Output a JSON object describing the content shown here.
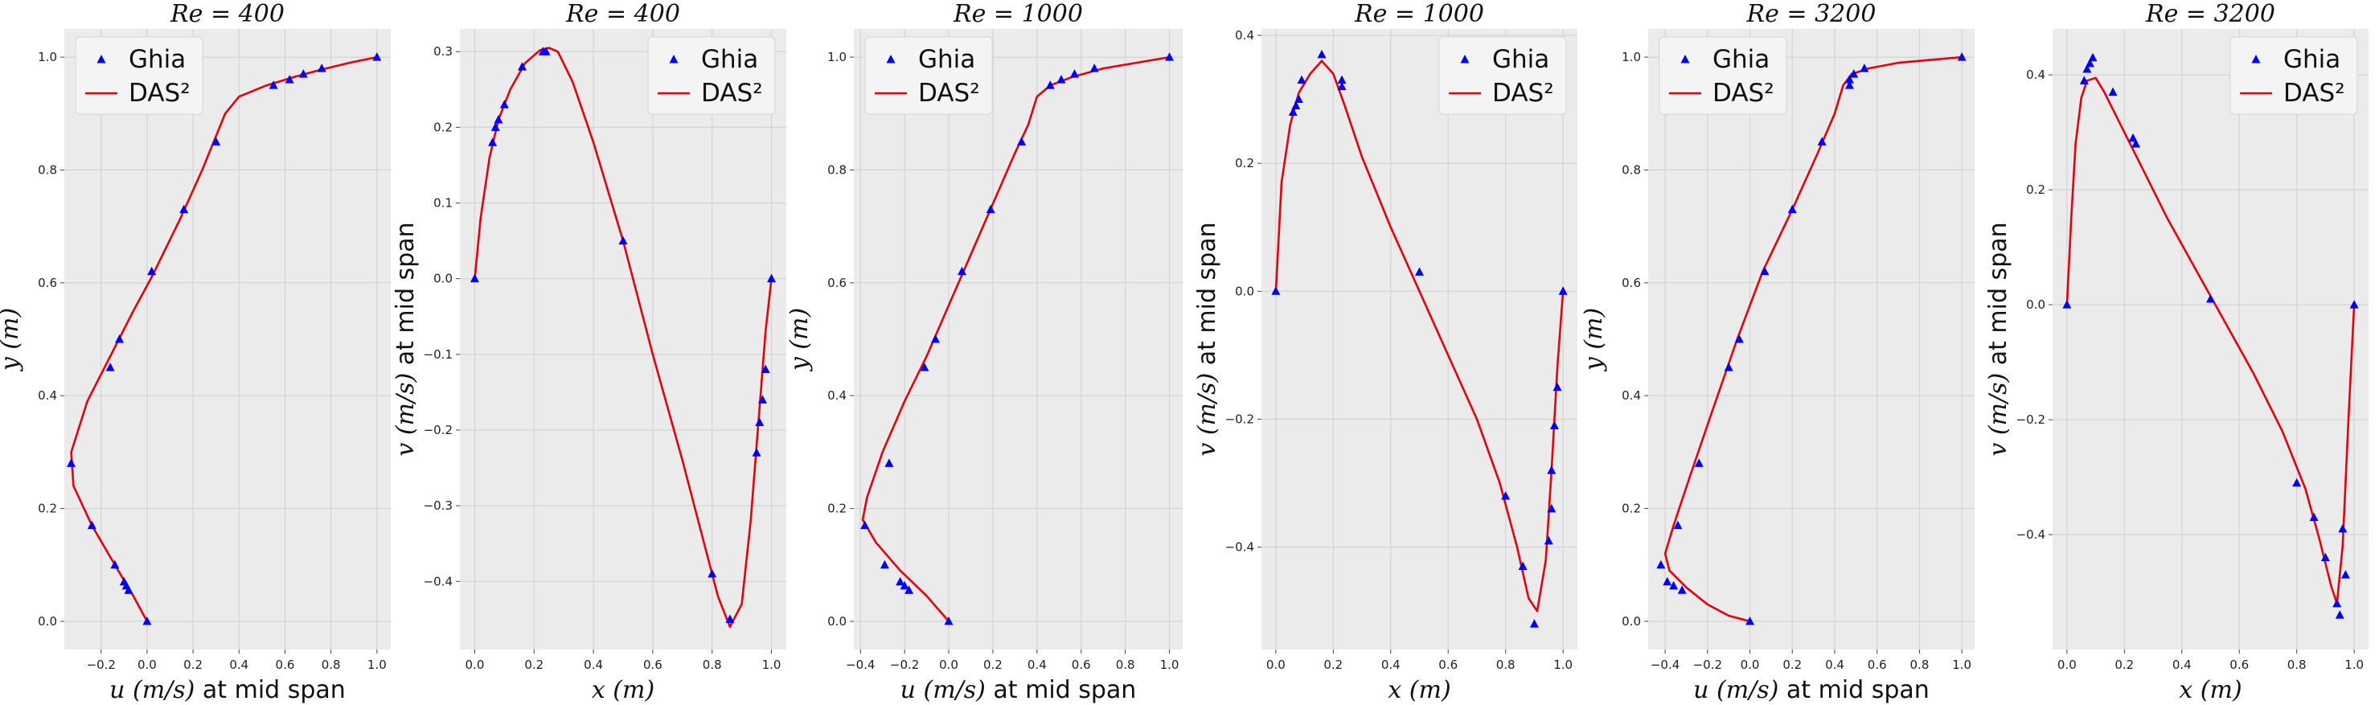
{
  "chart_data": [
    {
      "type": "line",
      "title": "Re = 400",
      "xlabel": "u (m/s) at mid span",
      "ylabel": "y (m)",
      "xlim": [
        -0.36,
        1.06
      ],
      "ylim": [
        -0.05,
        1.05
      ],
      "xticks": [
        -0.2,
        0.0,
        0.2,
        0.4,
        0.6,
        0.8,
        1.0
      ],
      "yticks": [
        0.0,
        0.2,
        0.4,
        0.6,
        0.8,
        1.0
      ],
      "grid": true,
      "legend_position": "top-left",
      "series": [
        {
          "name": "Ghia",
          "kind": "marker",
          "color": "#0000ff",
          "x": [
            0.0,
            -0.08,
            -0.09,
            -0.1,
            -0.14,
            -0.24,
            -0.33,
            -0.16,
            -0.12,
            0.02,
            0.16,
            0.3,
            0.55,
            0.62,
            0.68,
            0.76,
            1.0
          ],
          "y": [
            0.0,
            0.055,
            0.063,
            0.07,
            0.1,
            0.17,
            0.28,
            0.45,
            0.5,
            0.62,
            0.73,
            0.85,
            0.95,
            0.96,
            0.97,
            0.98,
            1.0
          ]
        },
        {
          "name": "DAS²",
          "kind": "line",
          "color": "#e8000b",
          "x": [
            0.0,
            -0.06,
            -0.14,
            -0.24,
            -0.32,
            -0.33,
            -0.26,
            -0.16,
            -0.06,
            0.02,
            0.14,
            0.24,
            0.3,
            0.34,
            0.4,
            0.52,
            0.64,
            0.76,
            0.88,
            1.0
          ],
          "y": [
            0.0,
            0.045,
            0.1,
            0.17,
            0.24,
            0.3,
            0.39,
            0.47,
            0.55,
            0.61,
            0.71,
            0.8,
            0.86,
            0.9,
            0.93,
            0.95,
            0.965,
            0.978,
            0.99,
            1.0
          ]
        }
      ]
    },
    {
      "type": "line",
      "title": "Re = 400",
      "xlabel": "x (m)",
      "ylabel": "v (m/s) at mid span",
      "xlim": [
        -0.05,
        1.05
      ],
      "ylim": [
        -0.49,
        0.33
      ],
      "xticks": [
        0.0,
        0.2,
        0.4,
        0.6,
        0.8,
        1.0
      ],
      "yticks": [
        -0.4,
        -0.3,
        -0.2,
        -0.1,
        0.0,
        0.1,
        0.2,
        0.3
      ],
      "grid": true,
      "legend_position": "top-right",
      "series": [
        {
          "name": "Ghia",
          "kind": "marker",
          "color": "#0000ff",
          "x": [
            0.0,
            0.06,
            0.07,
            0.08,
            0.1,
            0.16,
            0.23,
            0.24,
            0.5,
            0.8,
            0.86,
            0.95,
            0.96,
            0.97,
            0.98,
            1.0
          ],
          "y": [
            0.0,
            0.18,
            0.2,
            0.21,
            0.23,
            0.28,
            0.3,
            0.3,
            0.05,
            -0.39,
            -0.45,
            -0.23,
            -0.19,
            -0.16,
            -0.12,
            0.0
          ]
        },
        {
          "name": "DAS²",
          "kind": "line",
          "color": "#e8000b",
          "x": [
            0.0,
            0.02,
            0.05,
            0.08,
            0.12,
            0.17,
            0.22,
            0.25,
            0.28,
            0.33,
            0.4,
            0.5,
            0.6,
            0.7,
            0.78,
            0.82,
            0.86,
            0.9,
            0.93,
            0.96,
            0.98,
            1.0
          ],
          "y": [
            0.0,
            0.08,
            0.16,
            0.21,
            0.25,
            0.285,
            0.302,
            0.305,
            0.3,
            0.26,
            0.18,
            0.05,
            -0.1,
            -0.24,
            -0.36,
            -0.42,
            -0.46,
            -0.43,
            -0.32,
            -0.17,
            -0.07,
            0.0
          ]
        }
      ]
    },
    {
      "type": "line",
      "title": "Re = 1000",
      "xlabel": "u (m/s) at mid span",
      "ylabel": "y (m)",
      "xlim": [
        -0.43,
        1.06
      ],
      "ylim": [
        -0.05,
        1.05
      ],
      "xticks": [
        -0.4,
        -0.2,
        0.0,
        0.2,
        0.4,
        0.6,
        0.8,
        1.0
      ],
      "yticks": [
        0.0,
        0.2,
        0.4,
        0.6,
        0.8,
        1.0
      ],
      "grid": true,
      "legend_position": "top-left",
      "series": [
        {
          "name": "Ghia",
          "kind": "marker",
          "color": "#0000ff",
          "x": [
            0.0,
            -0.18,
            -0.2,
            -0.22,
            -0.29,
            -0.38,
            -0.27,
            -0.11,
            -0.06,
            0.06,
            0.19,
            0.33,
            0.46,
            0.51,
            0.57,
            0.66,
            1.0
          ],
          "y": [
            0.0,
            0.055,
            0.063,
            0.07,
            0.1,
            0.17,
            0.28,
            0.45,
            0.5,
            0.62,
            0.73,
            0.85,
            0.95,
            0.96,
            0.97,
            0.98,
            1.0
          ]
        },
        {
          "name": "DAS²",
          "kind": "line",
          "color": "#e8000b",
          "x": [
            0.0,
            -0.1,
            -0.22,
            -0.33,
            -0.39,
            -0.37,
            -0.3,
            -0.2,
            -0.1,
            0.0,
            0.1,
            0.2,
            0.3,
            0.36,
            0.4,
            0.46,
            0.56,
            0.7,
            0.85,
            1.0
          ],
          "y": [
            0.0,
            0.045,
            0.09,
            0.14,
            0.18,
            0.22,
            0.3,
            0.39,
            0.47,
            0.56,
            0.65,
            0.74,
            0.83,
            0.88,
            0.93,
            0.95,
            0.965,
            0.98,
            0.99,
            1.0
          ]
        }
      ]
    },
    {
      "type": "line",
      "title": "Re = 1000",
      "xlabel": "x (m)",
      "ylabel": "v (m/s) at mid span",
      "xlim": [
        -0.05,
        1.05
      ],
      "ylim": [
        -0.56,
        0.41
      ],
      "xticks": [
        0.0,
        0.2,
        0.4,
        0.6,
        0.8,
        1.0
      ],
      "yticks": [
        -0.4,
        -0.2,
        0.0,
        0.2,
        0.4
      ],
      "grid": true,
      "legend_position": "top-right",
      "series": [
        {
          "name": "Ghia",
          "kind": "marker",
          "color": "#0000ff",
          "x": [
            0.0,
            0.06,
            0.07,
            0.08,
            0.09,
            0.16,
            0.23,
            0.23,
            0.5,
            0.8,
            0.86,
            0.9,
            0.95,
            0.96,
            0.96,
            0.97,
            0.98,
            1.0
          ],
          "y": [
            0.0,
            0.28,
            0.29,
            0.3,
            0.33,
            0.37,
            0.33,
            0.32,
            0.03,
            -0.32,
            -0.43,
            -0.52,
            -0.39,
            -0.34,
            -0.28,
            -0.21,
            -0.15,
            0.0
          ]
        },
        {
          "name": "DAS²",
          "kind": "line",
          "color": "#e8000b",
          "x": [
            0.0,
            0.02,
            0.05,
            0.08,
            0.12,
            0.16,
            0.2,
            0.24,
            0.3,
            0.4,
            0.5,
            0.6,
            0.7,
            0.78,
            0.84,
            0.88,
            0.91,
            0.94,
            0.96,
            0.98,
            1.0
          ],
          "y": [
            0.0,
            0.17,
            0.26,
            0.31,
            0.34,
            0.36,
            0.34,
            0.29,
            0.21,
            0.1,
            0.0,
            -0.1,
            -0.2,
            -0.3,
            -0.4,
            -0.48,
            -0.5,
            -0.42,
            -0.28,
            -0.12,
            0.0
          ]
        }
      ]
    },
    {
      "type": "line",
      "title": "Re = 3200",
      "xlabel": "u (m/s) at mid span",
      "ylabel": "y (m)",
      "xlim": [
        -0.48,
        1.06
      ],
      "ylim": [
        -0.05,
        1.05
      ],
      "xticks": [
        -0.4,
        -0.2,
        0.0,
        0.2,
        0.4,
        0.6,
        0.8,
        1.0
      ],
      "yticks": [
        0.0,
        0.2,
        0.4,
        0.6,
        0.8,
        1.0
      ],
      "grid": true,
      "legend_position": "top-left",
      "series": [
        {
          "name": "Ghia",
          "kind": "marker",
          "color": "#0000ff",
          "x": [
            0.0,
            -0.32,
            -0.36,
            -0.39,
            -0.42,
            -0.34,
            -0.24,
            -0.1,
            -0.05,
            0.07,
            0.2,
            0.34,
            0.47,
            0.47,
            0.49,
            0.54,
            1.0
          ],
          "y": [
            0.0,
            0.055,
            0.063,
            0.07,
            0.1,
            0.17,
            0.28,
            0.45,
            0.5,
            0.62,
            0.73,
            0.85,
            0.95,
            0.96,
            0.97,
            0.98,
            1.0
          ]
        },
        {
          "name": "DAS²",
          "kind": "line",
          "color": "#e8000b",
          "x": [
            0.0,
            -0.1,
            -0.2,
            -0.3,
            -0.38,
            -0.4,
            -0.36,
            -0.28,
            -0.18,
            -0.06,
            0.06,
            0.2,
            0.32,
            0.4,
            0.44,
            0.48,
            0.56,
            0.7,
            0.85,
            1.0
          ],
          "y": [
            0.0,
            0.01,
            0.03,
            0.06,
            0.09,
            0.12,
            0.17,
            0.26,
            0.37,
            0.5,
            0.62,
            0.73,
            0.83,
            0.9,
            0.95,
            0.97,
            0.98,
            0.99,
            0.995,
            1.0
          ]
        }
      ]
    },
    {
      "type": "line",
      "title": "Re = 3200",
      "xlabel": "x (m)",
      "ylabel": "v (m/s) at mid span",
      "xlim": [
        -0.05,
        1.05
      ],
      "ylim": [
        -0.6,
        0.48
      ],
      "xticks": [
        0.0,
        0.2,
        0.4,
        0.6,
        0.8,
        1.0
      ],
      "yticks": [
        -0.4,
        -0.2,
        0.0,
        0.2,
        0.4
      ],
      "grid": true,
      "legend_position": "top-right",
      "series": [
        {
          "name": "Ghia",
          "kind": "marker",
          "color": "#0000ff",
          "x": [
            0.0,
            0.06,
            0.07,
            0.08,
            0.09,
            0.16,
            0.23,
            0.24,
            0.5,
            0.8,
            0.86,
            0.9,
            0.94,
            0.95,
            0.96,
            0.97,
            1.0
          ],
          "y": [
            0.0,
            0.39,
            0.41,
            0.42,
            0.43,
            0.37,
            0.29,
            0.28,
            0.01,
            -0.31,
            -0.37,
            -0.44,
            -0.52,
            -0.54,
            -0.39,
            -0.47,
            0.0
          ]
        },
        {
          "name": "DAS²",
          "kind": "line",
          "color": "#e8000b",
          "x": [
            0.0,
            0.015,
            0.03,
            0.05,
            0.07,
            0.1,
            0.13,
            0.18,
            0.25,
            0.35,
            0.45,
            0.55,
            0.65,
            0.75,
            0.83,
            0.88,
            0.92,
            0.94,
            0.96,
            0.98,
            1.0
          ],
          "y": [
            0.0,
            0.15,
            0.28,
            0.36,
            0.39,
            0.395,
            0.37,
            0.32,
            0.25,
            0.15,
            0.06,
            -0.03,
            -0.12,
            -0.22,
            -0.32,
            -0.41,
            -0.49,
            -0.52,
            -0.42,
            -0.2,
            0.0
          ]
        }
      ]
    }
  ]
}
